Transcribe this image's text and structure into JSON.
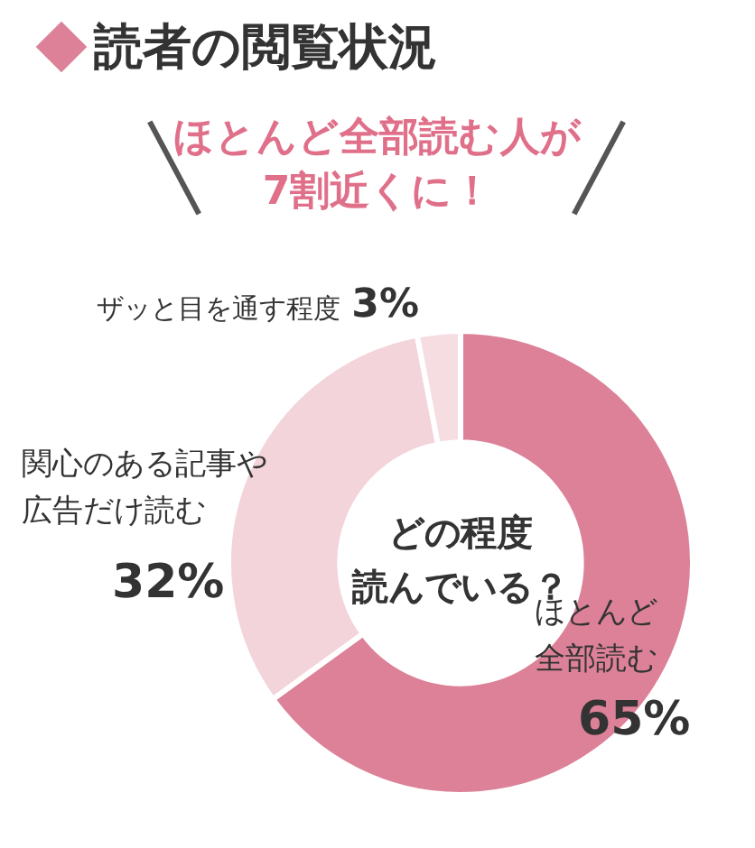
{
  "chart_data": {
    "type": "donut",
    "title": "読者の閲覧状況",
    "subtitle": "ほとんど全部読む人が7割近くに！",
    "categories": [
      "ほとんど全部読む",
      "関心のある記事や広告だけ読む",
      "ザッと目を通す程度"
    ],
    "values": [
      65,
      32,
      3
    ],
    "colors": [
      "#dc8197",
      "#f3d4da",
      "#f5dde1"
    ],
    "value_labels": [
      "65%",
      "32%",
      "3%"
    ],
    "annotations": [
      "どの程度",
      "読んでいる？"
    ],
    "legend": false
  }
}
